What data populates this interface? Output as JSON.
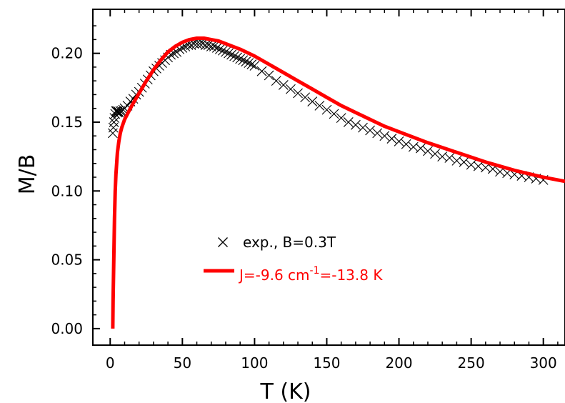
{
  "chart_data": {
    "type": "scatter",
    "xlabel": "T  (K)",
    "ylabel": "M/B",
    "xlim": [
      -12,
      315
    ],
    "ylim": [
      -0.012,
      0.232
    ],
    "xticks": [
      "0",
      "50",
      "100",
      "150",
      "200",
      "250",
      "300"
    ],
    "yticks": [
      "0.00",
      "0.05",
      "0.10",
      "0.15",
      "0.20"
    ],
    "xtick_values": [
      0,
      50,
      100,
      150,
      200,
      250,
      300
    ],
    "ytick_values": [
      0.0,
      0.05,
      0.1,
      0.15,
      0.2
    ],
    "grid": false,
    "legend_position": "center",
    "series": [
      {
        "name": "exp., B=0.3T",
        "kind": "markers",
        "marker": "x",
        "color": "#000000",
        "x": [
          1.8,
          2.2,
          2.6,
          3.0,
          3.5,
          4.0,
          4.5,
          5.0,
          5.5,
          6.0,
          7,
          8,
          9,
          10,
          12,
          14,
          16,
          18,
          20,
          22,
          24,
          26,
          28,
          30,
          32,
          34,
          36,
          38,
          40,
          42,
          44,
          46,
          48,
          50,
          52,
          54,
          56,
          58,
          60,
          62,
          64,
          66,
          68,
          70,
          72,
          74,
          76,
          78,
          80,
          82,
          84,
          86,
          88,
          90,
          92,
          94,
          96,
          98,
          100,
          105,
          110,
          115,
          120,
          125,
          130,
          135,
          140,
          145,
          150,
          155,
          160,
          165,
          170,
          175,
          180,
          185,
          190,
          195,
          200,
          205,
          210,
          215,
          220,
          225,
          230,
          235,
          240,
          245,
          250,
          255,
          260,
          265,
          270,
          275,
          280,
          285,
          290,
          295,
          300
        ],
        "y": [
          0.142,
          0.146,
          0.15,
          0.153,
          0.156,
          0.158,
          0.158,
          0.157,
          0.158,
          0.157,
          0.158,
          0.158,
          0.159,
          0.16,
          0.162,
          0.165,
          0.167,
          0.17,
          0.172,
          0.175,
          0.178,
          0.181,
          0.184,
          0.187,
          0.189,
          0.191,
          0.193,
          0.195,
          0.197,
          0.199,
          0.2,
          0.201,
          0.203,
          0.204,
          0.205,
          0.206,
          0.206,
          0.207,
          0.207,
          0.207,
          0.207,
          0.206,
          0.206,
          0.205,
          0.205,
          0.204,
          0.203,
          0.202,
          0.201,
          0.2,
          0.199,
          0.198,
          0.197,
          0.196,
          0.195,
          0.194,
          0.193,
          0.192,
          0.191,
          0.187,
          0.184,
          0.18,
          0.177,
          0.174,
          0.171,
          0.168,
          0.165,
          0.162,
          0.159,
          0.156,
          0.153,
          0.15,
          0.148,
          0.146,
          0.144,
          0.142,
          0.14,
          0.138,
          0.136,
          0.134,
          0.132,
          0.131,
          0.129,
          0.127,
          0.125,
          0.124,
          0.122,
          0.121,
          0.119,
          0.118,
          0.117,
          0.116,
          0.114,
          0.113,
          0.112,
          0.111,
          0.11,
          0.109,
          0.108
        ]
      },
      {
        "name": "J=-9.6  cm",
        "name_superscript": "-1",
        "name_suffix": "=-13.8  K",
        "kind": "line",
        "color": "#ff0000",
        "x": [
          1.8,
          2,
          2.5,
          3,
          3.5,
          4,
          5,
          6,
          7,
          8,
          10,
          12,
          15,
          20,
          25,
          30,
          35,
          40,
          45,
          50,
          55,
          60,
          65,
          70,
          75,
          80,
          90,
          100,
          110,
          120,
          130,
          140,
          150,
          160,
          170,
          180,
          190,
          200,
          220,
          240,
          260,
          280,
          300,
          315
        ],
        "y": [
          0.0,
          0.02,
          0.05,
          0.08,
          0.1,
          0.112,
          0.128,
          0.136,
          0.142,
          0.146,
          0.152,
          0.156,
          0.162,
          0.171,
          0.18,
          0.188,
          0.195,
          0.201,
          0.205,
          0.208,
          0.21,
          0.211,
          0.211,
          0.21,
          0.209,
          0.207,
          0.203,
          0.198,
          0.192,
          0.186,
          0.18,
          0.174,
          0.168,
          0.162,
          0.157,
          0.152,
          0.147,
          0.143,
          0.135,
          0.128,
          0.121,
          0.115,
          0.11,
          0.107
        ]
      }
    ]
  }
}
